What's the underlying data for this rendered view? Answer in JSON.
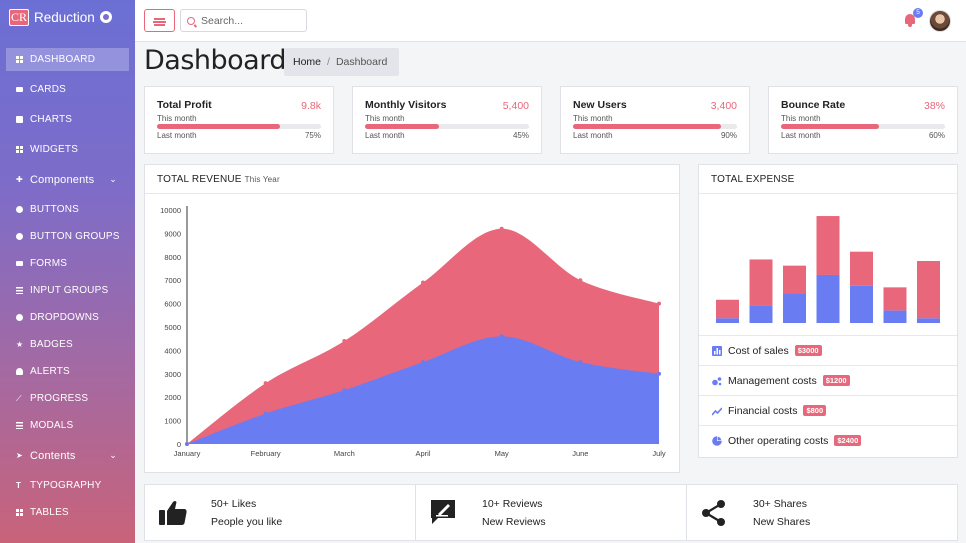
{
  "brand": {
    "logo": "CR",
    "name": "Reduction"
  },
  "sidebar": {
    "items": [
      {
        "label": "DASHBOARD"
      },
      {
        "label": "CARDS"
      },
      {
        "label": "CHARTS"
      },
      {
        "label": "WIDGETS"
      },
      {
        "label": "Components"
      },
      {
        "label": "BUTTONS"
      },
      {
        "label": "BUTTON GROUPS"
      },
      {
        "label": "FORMS"
      },
      {
        "label": "INPUT GROUPS"
      },
      {
        "label": "DROPDOWNS"
      },
      {
        "label": "BADGES"
      },
      {
        "label": "ALERTS"
      },
      {
        "label": "PROGRESS"
      },
      {
        "label": "MODALS"
      },
      {
        "label": "Contents"
      },
      {
        "label": "TYPOGRAPHY"
      },
      {
        "label": "TABLES"
      }
    ]
  },
  "topbar": {
    "search_placeholder": "Search...",
    "notification_count": "5"
  },
  "page": {
    "title": "Dashboard",
    "breadcrumb_home": "Home",
    "breadcrumb_sep": "/",
    "breadcrumb_current": "Dashboard"
  },
  "stats": [
    {
      "title": "Total Profit",
      "value": "9.8k",
      "sub": "This month",
      "last_label": "Last month",
      "percent_label": "75%",
      "percent": 75
    },
    {
      "title": "Monthly Visitors",
      "value": "5,400",
      "sub": "This month",
      "last_label": "Last month",
      "percent_label": "45%",
      "percent": 45
    },
    {
      "title": "New Users",
      "value": "3,400",
      "sub": "This month",
      "last_label": "Last month",
      "percent_label": "90%",
      "percent": 90
    },
    {
      "title": "Bounce Rate",
      "value": "38%",
      "sub": "This month",
      "last_label": "Last month",
      "percent_label": "60%",
      "percent": 60
    }
  ],
  "revenue": {
    "title": "TOTAL REVENUE",
    "subtitle": "This Year"
  },
  "expense": {
    "title": "TOTAL EXPENSE",
    "items": [
      {
        "label": "Cost of sales",
        "tag": "$3000",
        "icon": "bar-chart-icon"
      },
      {
        "label": "Management costs",
        "tag": "$1200",
        "icon": "bubbles-icon"
      },
      {
        "label": "Financial costs",
        "tag": "$800",
        "icon": "trend-line-icon"
      },
      {
        "label": "Other operating costs",
        "tag": "$2400",
        "icon": "pie-chart-icon"
      }
    ]
  },
  "social": [
    {
      "line1": "50+ Likes",
      "line2": "People you like",
      "icon": "thumbs-up-icon"
    },
    {
      "line1": "10+ Reviews",
      "line2": "New Reviews",
      "icon": "review-icon"
    },
    {
      "line1": "30+ Shares",
      "line2": "New Shares",
      "icon": "share-icon"
    }
  ],
  "colors": {
    "accent": "#e8677b",
    "secondary": "#6a7cf2"
  },
  "chart_data": [
    {
      "type": "area",
      "categories": [
        "January",
        "February",
        "March",
        "April",
        "May",
        "June",
        "July"
      ],
      "y_ticks": [
        "0",
        "1000",
        "2000",
        "3000",
        "4000",
        "5000",
        "6000",
        "7000",
        "8000",
        "9000",
        "10000"
      ],
      "ylim": [
        0,
        10000
      ],
      "stacked": true,
      "series": [
        {
          "color": "#6a7cf2",
          "values": [
            0,
            1300,
            2300,
            3500,
            4600,
            3500,
            3000
          ]
        },
        {
          "color": "#e8677b",
          "values": [
            0,
            1300,
            2100,
            3400,
            4600,
            3500,
            3000
          ]
        }
      ]
    },
    {
      "type": "bar",
      "stacked": true,
      "categories": [
        "",
        "",
        "",
        "",
        "",
        "",
        ""
      ],
      "series": [
        {
          "color": "#6a7cf2",
          "values": [
            3,
            11,
            19,
            31,
            24,
            8,
            3
          ]
        },
        {
          "color": "#e8677b",
          "values": [
            12,
            30,
            18,
            38,
            22,
            15,
            37
          ]
        }
      ]
    }
  ]
}
